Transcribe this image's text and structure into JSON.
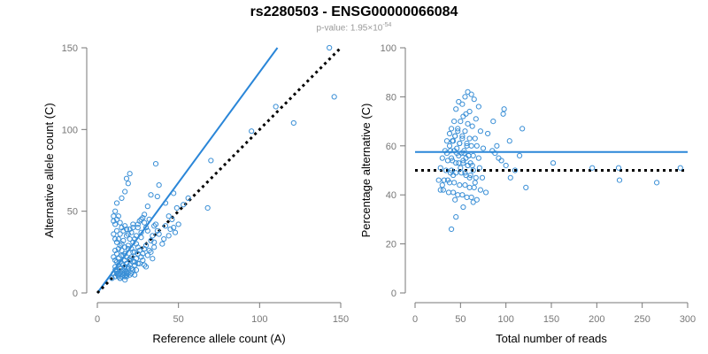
{
  "title": "rs2280503 - ENSG00000066084",
  "subtitle": {
    "prefix": "p-value: 1.95×10",
    "exponent": "-54"
  },
  "colors": {
    "points": "#3a8fd6",
    "regression": "#2a86d8",
    "reference": "#000000",
    "axis": "#777777",
    "tick_label": "#777777"
  },
  "chart_data": [
    {
      "type": "scatter",
      "title": "",
      "xlabel": "Reference allele count (A)",
      "ylabel": "Alternative allele count (C)",
      "xlim": [
        0,
        150
      ],
      "ylim": [
        0,
        150
      ],
      "xticks": [
        0,
        50,
        100,
        150
      ],
      "yticks": [
        0,
        50,
        100,
        150
      ],
      "grid": false,
      "lines": [
        {
          "style": "solid",
          "color": "#2a86d8",
          "x": [
            0,
            111
          ],
          "y": [
            0,
            150
          ]
        },
        {
          "style": "dotted",
          "color": "#000000",
          "x": [
            0,
            150
          ],
          "y": [
            0,
            150
          ]
        }
      ],
      "points": {
        "x": [
          143,
          146,
          110,
          121,
          95,
          70,
          68,
          56,
          53,
          49,
          47,
          47,
          42,
          41,
          44,
          45,
          36,
          35,
          38,
          37,
          33,
          31,
          29,
          27,
          25,
          22,
          20,
          19,
          18,
          17,
          15,
          12,
          11,
          10,
          10,
          11,
          12,
          13,
          14,
          15,
          16,
          17,
          18,
          19,
          20,
          21,
          22,
          23,
          24,
          25,
          26,
          27,
          28,
          29,
          30,
          31,
          32,
          33,
          34,
          35,
          36,
          37,
          38,
          40,
          42,
          44,
          46,
          48,
          50,
          12,
          13,
          14,
          15,
          16,
          17,
          18,
          19,
          20,
          21,
          22,
          23,
          24,
          25,
          26,
          27,
          28,
          29,
          30,
          31,
          32,
          33,
          34,
          35,
          10,
          11,
          12,
          13,
          14,
          15,
          16,
          17,
          18,
          19,
          20,
          21,
          22,
          23,
          24,
          25,
          26,
          27,
          28,
          29,
          30,
          11,
          12,
          13,
          14,
          15,
          16,
          17,
          18,
          19,
          20,
          21,
          22,
          23,
          24,
          25,
          10,
          11,
          12,
          13,
          14,
          15,
          16,
          17,
          18,
          19,
          20,
          21,
          22,
          23,
          11,
          12,
          13,
          14,
          15,
          16,
          17,
          18,
          19,
          20,
          9,
          10,
          11,
          12,
          13,
          14,
          15,
          16,
          17,
          18,
          11,
          12,
          13,
          14,
          15,
          16,
          17,
          18
        ],
        "y": [
          150,
          120,
          114,
          104,
          99,
          81,
          52,
          58,
          54,
          52,
          61,
          40,
          55,
          33,
          47,
          39,
          79,
          41,
          66,
          59,
          60,
          53,
          48,
          45,
          42,
          40,
          73,
          67,
          70,
          62,
          58,
          55,
          50,
          47,
          44,
          42,
          45,
          47,
          43,
          40,
          38,
          41,
          39,
          36,
          39,
          37,
          42,
          33,
          35,
          40,
          44,
          37,
          46,
          43,
          40,
          38,
          45,
          32,
          35,
          31,
          42,
          38,
          36,
          30,
          41,
          35,
          45,
          37,
          42,
          38,
          33,
          36,
          30,
          32,
          28,
          35,
          29,
          33,
          27,
          31,
          25,
          30,
          28,
          26,
          34,
          24,
          27,
          29,
          23,
          26,
          25,
          21,
          28,
          36,
          33,
          31,
          27,
          29,
          26,
          23,
          24,
          22,
          27,
          20,
          22,
          25,
          19,
          21,
          24,
          18,
          22,
          20,
          17,
          16,
          26,
          24,
          21,
          19,
          23,
          17,
          20,
          18,
          16,
          21,
          15,
          19,
          17,
          14,
          18,
          22,
          20,
          19,
          17,
          15,
          18,
          14,
          16,
          13,
          15,
          17,
          12,
          14,
          11,
          16,
          14,
          12,
          15,
          13,
          11,
          13,
          10,
          12,
          11,
          9,
          12,
          10,
          13,
          11,
          9,
          10,
          12,
          8,
          11,
          14,
          12,
          10,
          9,
          13,
          11,
          10,
          12
        ]
      }
    },
    {
      "type": "scatter",
      "title": "",
      "xlabel": "Total number of reads",
      "ylabel": "Percentage alternative (C)",
      "xlim": [
        0,
        300
      ],
      "ylim": [
        0,
        100
      ],
      "xticks": [
        0,
        50,
        100,
        150,
        200,
        250,
        300
      ],
      "yticks": [
        0,
        20,
        40,
        60,
        80,
        100
      ],
      "grid": false,
      "lines": [
        {
          "style": "solid",
          "color": "#2a86d8",
          "x": [
            0,
            300
          ],
          "y": [
            57.5,
            57.5
          ]
        },
        {
          "style": "dotted",
          "color": "#000000",
          "x": [
            0,
            300
          ],
          "y": [
            50,
            50
          ]
        }
      ],
      "points": {
        "x": [
          58,
          62,
          55,
          52,
          65,
          48,
          70,
          45,
          60,
          56,
          53,
          67,
          43,
          50,
          58,
          63,
          40,
          47,
          55,
          72,
          38,
          44,
          52,
          60,
          66,
          35,
          42,
          49,
          57,
          62,
          68,
          75,
          33,
          39,
          46,
          54,
          59,
          64,
          70,
          30,
          36,
          41,
          48,
          53,
          58,
          63,
          71,
          28,
          34,
          40,
          45,
          51,
          56,
          61,
          67,
          74,
          26,
          32,
          38,
          43,
          49,
          55,
          60,
          65,
          72,
          31,
          37,
          42,
          47,
          52,
          57,
          62,
          68,
          35,
          40,
          45,
          50,
          55,
          60,
          66,
          38,
          43,
          48,
          53,
          58,
          64,
          41,
          46,
          51,
          56,
          61,
          44,
          49,
          54,
          59,
          47,
          52,
          57,
          42,
          36,
          30,
          28,
          80,
          85,
          90,
          95,
          100,
          105,
          110,
          118,
          86,
          92,
          98,
          104,
          115,
          122,
          97,
          88,
          78,
          152,
          195,
          224,
          225,
          266,
          292,
          45,
          53,
          40,
          64,
          44,
          39
        ],
        "y": [
          82,
          81,
          80,
          77,
          79,
          78,
          76,
          75,
          74,
          73,
          72,
          71,
          70,
          70,
          69,
          68,
          67,
          67,
          66,
          66,
          65,
          64,
          64,
          63,
          63,
          62,
          62,
          61,
          61,
          60,
          60,
          59,
          58,
          58,
          57,
          57,
          56,
          56,
          55,
          55,
          54,
          54,
          53,
          53,
          52,
          52,
          51,
          51,
          50,
          50,
          49,
          49,
          48,
          48,
          47,
          47,
          46,
          46,
          45,
          45,
          44,
          44,
          43,
          43,
          42,
          42,
          41,
          41,
          40,
          40,
          39,
          39,
          38,
          57,
          55,
          53,
          51,
          49,
          47,
          45,
          60,
          58,
          56,
          54,
          52,
          50,
          62,
          59,
          57,
          55,
          53,
          64,
          61,
          58,
          56,
          66,
          63,
          60,
          48,
          46,
          44,
          42,
          65,
          58,
          60,
          54,
          52,
          47,
          50,
          67,
          70,
          55,
          75,
          62,
          56,
          43,
          73,
          57,
          41,
          53,
          51,
          51,
          46,
          45,
          51,
          31,
          35,
          26,
          37,
          38,
          49
        ]
      }
    }
  ]
}
